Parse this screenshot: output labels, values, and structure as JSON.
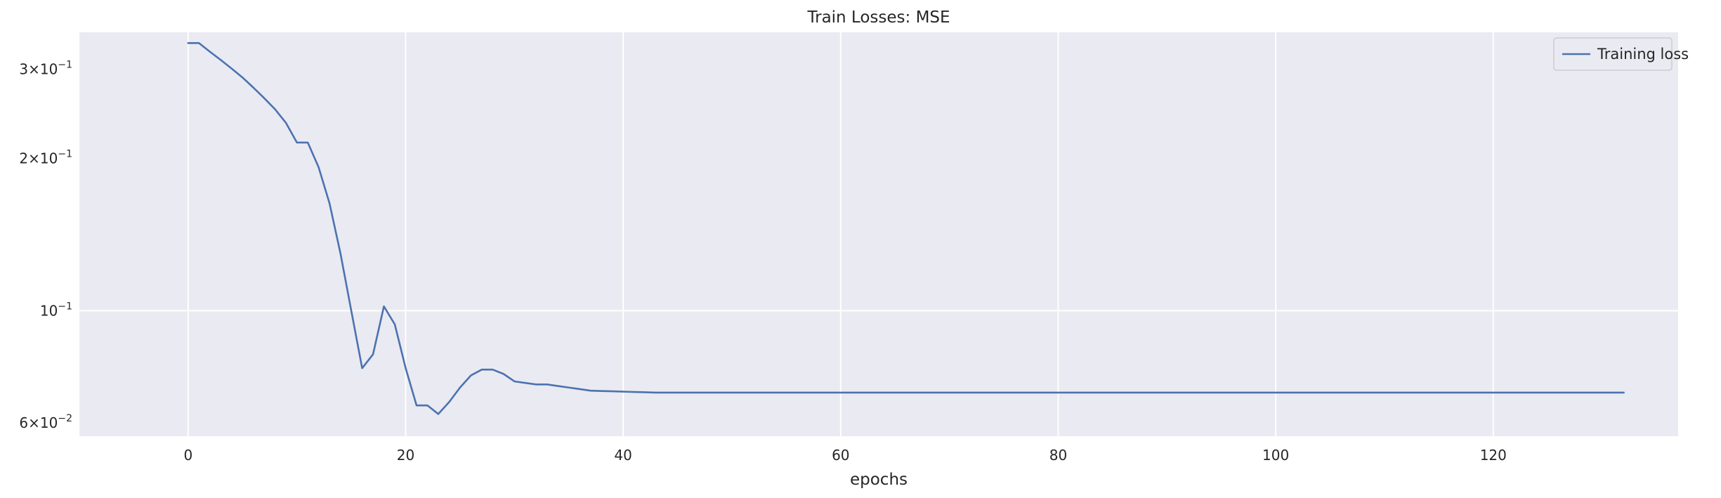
{
  "chart_data": {
    "type": "line",
    "title": "Train Losses:  MSE",
    "xlabel": "epochs",
    "ylabel": "",
    "yscale": "log",
    "xlim": [
      -10,
      137
    ],
    "ylim": [
      0.0565,
      0.355
    ],
    "grid": true,
    "legend_position": "top-right",
    "x_ticks": [
      0,
      20,
      40,
      60,
      80,
      100,
      120
    ],
    "y_ticks": [
      {
        "value": 0.3,
        "mantissa": "3",
        "exponent": "−1"
      },
      {
        "value": 0.2,
        "mantissa": "2",
        "exponent": "−1"
      },
      {
        "value": 0.1,
        "mantissa": "",
        "exponent": "−1"
      },
      {
        "value": 0.06,
        "mantissa": "6",
        "exponent": "−2"
      }
    ],
    "colors": {
      "background": "#eaeaf2",
      "grid": "#ffffff",
      "series": "#4c72b0"
    },
    "series": [
      {
        "name": "Training loss",
        "x": [
          0,
          1,
          2,
          3,
          4,
          5,
          6,
          7,
          8,
          9,
          10,
          11,
          12,
          13,
          14,
          15,
          16,
          17,
          18,
          19,
          20,
          21,
          22,
          23,
          24,
          25,
          26,
          27,
          28,
          29,
          30,
          31,
          32,
          33,
          34,
          35,
          36,
          37,
          38,
          39,
          40,
          41,
          42,
          43,
          44,
          45,
          46,
          47,
          48,
          49,
          50,
          51,
          52,
          53,
          54,
          55,
          56,
          57,
          58,
          59,
          60,
          61,
          62,
          63,
          64,
          65,
          66,
          67,
          68,
          69,
          70,
          71,
          72,
          73,
          74,
          75,
          76,
          77,
          78,
          79,
          80,
          81,
          82,
          83,
          84,
          85,
          86,
          87,
          88,
          89,
          90,
          91,
          92,
          93,
          94,
          95,
          96,
          97,
          98,
          99,
          100,
          101,
          102,
          103,
          104,
          105,
          106,
          107,
          108,
          109,
          110,
          111,
          112,
          113,
          114,
          115,
          116,
          117,
          118,
          119,
          120,
          121,
          122,
          123,
          124,
          125,
          126,
          127,
          128,
          129,
          130,
          131,
          132
        ],
        "y": [
          0.338,
          0.338,
          0.325,
          0.313,
          0.301,
          0.289,
          0.276,
          0.263,
          0.25,
          0.235,
          0.215,
          0.215,
          0.192,
          0.163,
          0.13,
          0.1,
          0.077,
          0.082,
          0.102,
          0.094,
          0.077,
          0.065,
          0.065,
          0.0625,
          0.066,
          0.0705,
          0.0745,
          0.0765,
          0.0765,
          0.075,
          0.0725,
          0.072,
          0.0715,
          0.0715,
          0.071,
          0.0705,
          0.07,
          0.0695,
          0.0694,
          0.0693,
          0.0692,
          0.0691,
          0.069,
          0.0689,
          0.0689,
          0.0689,
          0.0689,
          0.0689,
          0.0689,
          0.0689,
          0.0689,
          0.0689,
          0.0689,
          0.0689,
          0.0689,
          0.0689,
          0.0689,
          0.0689,
          0.0689,
          0.0689,
          0.0689,
          0.0689,
          0.0689,
          0.0689,
          0.0689,
          0.0689,
          0.0689,
          0.0689,
          0.0689,
          0.0689,
          0.0689,
          0.0689,
          0.0689,
          0.0689,
          0.0689,
          0.0689,
          0.0689,
          0.0689,
          0.0689,
          0.0689,
          0.0689,
          0.0689,
          0.0689,
          0.0689,
          0.0689,
          0.0689,
          0.0689,
          0.0689,
          0.0689,
          0.0689,
          0.0689,
          0.0689,
          0.0689,
          0.0689,
          0.0689,
          0.0689,
          0.0689,
          0.0689,
          0.0689,
          0.0689,
          0.0689,
          0.0689,
          0.0689,
          0.0689,
          0.0689,
          0.0689,
          0.0689,
          0.0689,
          0.0689,
          0.0689,
          0.0689,
          0.0689,
          0.0689,
          0.0689,
          0.0689,
          0.0689,
          0.0689,
          0.0689,
          0.0689,
          0.0689,
          0.0689,
          0.0689,
          0.0689,
          0.0689,
          0.0689,
          0.0689,
          0.0689,
          0.0689,
          0.0689,
          0.0689,
          0.0689,
          0.0689,
          0.0689
        ]
      }
    ]
  }
}
